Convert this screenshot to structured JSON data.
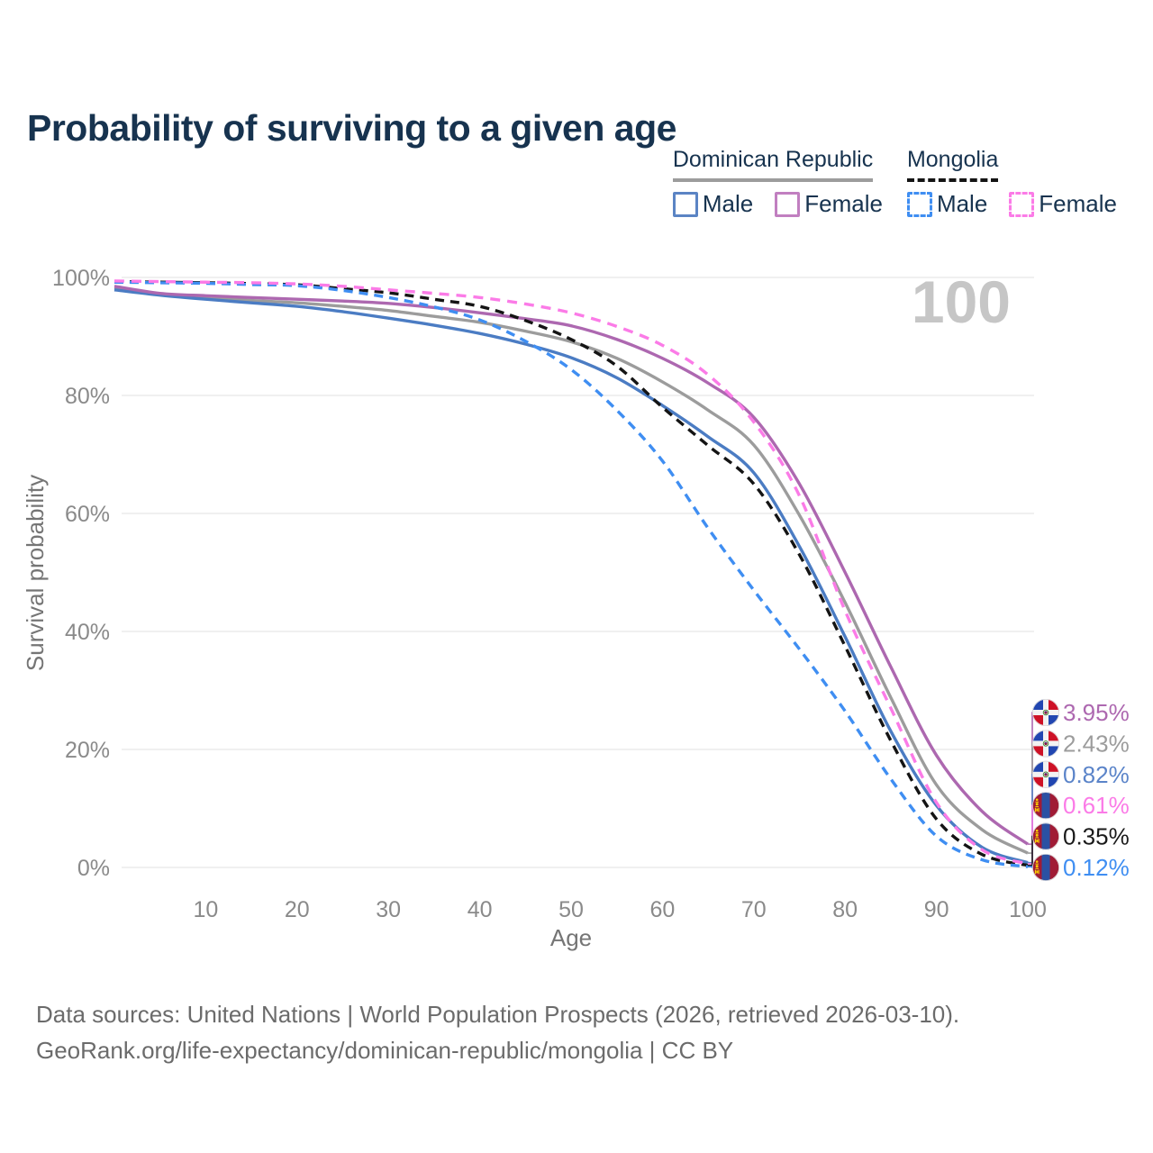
{
  "title": "Probability of surviving to a given age",
  "legend": {
    "groups": [
      {
        "name": "Dominican Republic",
        "items": [
          {
            "label": "Male"
          },
          {
            "label": "Female"
          }
        ]
      },
      {
        "name": "Mongolia",
        "items": [
          {
            "label": "Male"
          },
          {
            "label": "Female"
          }
        ]
      }
    ]
  },
  "chart_data": {
    "type": "line",
    "title": "Probability of surviving to a given age",
    "xlabel": "Age",
    "ylabel": "Survival probability",
    "xlim": [
      0,
      100
    ],
    "ylim": [
      0,
      100
    ],
    "grid": "horizontal",
    "legend_position": "top-right",
    "watermark": "100",
    "x_ticks": [
      10,
      20,
      30,
      40,
      50,
      60,
      70,
      80,
      90,
      100
    ],
    "y_ticks": [
      {
        "label": "0%",
        "value": 0
      },
      {
        "label": "20%",
        "value": 20
      },
      {
        "label": "40%",
        "value": 40
      },
      {
        "label": "60%",
        "value": 60
      },
      {
        "label": "80%",
        "value": 80
      },
      {
        "label": "100%",
        "value": 100
      }
    ],
    "x": [
      0,
      5,
      10,
      15,
      20,
      25,
      30,
      35,
      40,
      45,
      50,
      55,
      60,
      65,
      70,
      75,
      80,
      85,
      90,
      95,
      100
    ],
    "series": [
      {
        "name": "Dominican Republic Total",
        "id": "dr-total",
        "color": "#9c9c9c",
        "dash": "",
        "values": [
          98.2,
          97.2,
          96.6,
          96.1,
          95.7,
          95.1,
          94.4,
          93.4,
          92.4,
          90.9,
          89.1,
          86.3,
          82.3,
          77.5,
          71.6,
          59.7,
          44.9,
          28.8,
          14.0,
          6.4,
          2.43
        ]
      },
      {
        "name": "Dominican Republic Male",
        "id": "dr-male",
        "color": "#4b7cc3",
        "dash": "",
        "values": [
          97.9,
          97.0,
          96.3,
          95.7,
          95.1,
          94.2,
          93.1,
          91.9,
          90.5,
          88.7,
          86.4,
          83.0,
          78.3,
          73.0,
          66.9,
          54.4,
          39.1,
          23.1,
          10.5,
          3.4,
          0.82
        ]
      },
      {
        "name": "Dominican Republic Female",
        "id": "dr-female",
        "color": "#ad68b0",
        "dash": "",
        "values": [
          98.5,
          97.3,
          96.9,
          96.6,
          96.3,
          96.0,
          95.6,
          94.9,
          94.0,
          93.0,
          91.8,
          89.5,
          86.3,
          82.1,
          76.3,
          65.0,
          50.0,
          34.0,
          19.0,
          9.5,
          3.95
        ]
      },
      {
        "name": "Mongolia Total",
        "id": "mn-total",
        "color": "#141414",
        "dash": "10 7",
        "values": [
          99.3,
          99.2,
          99.1,
          98.95,
          98.75,
          98.1,
          97.4,
          96.3,
          95.1,
          92.7,
          89.5,
          85.0,
          78.0,
          71.5,
          65.0,
          53.0,
          37.5,
          21.5,
          8.2,
          2.2,
          0.35
        ]
      },
      {
        "name": "Mongolia Male",
        "id": "mn-male",
        "color": "#3f8ef2",
        "dash": "10 7",
        "values": [
          99.2,
          99.1,
          99.0,
          98.8,
          98.6,
          97.8,
          96.6,
          95.0,
          92.8,
          89.2,
          84.4,
          77.5,
          68.9,
          57.5,
          47.0,
          37.0,
          26.5,
          15.0,
          5.3,
          1.3,
          0.12
        ]
      },
      {
        "name": "Mongolia Female",
        "id": "mn-female",
        "color": "#fb7be7",
        "dash": "11 8",
        "values": [
          99.4,
          99.3,
          99.2,
          99.1,
          98.9,
          98.5,
          97.9,
          97.3,
          96.6,
          95.5,
          94.0,
          91.7,
          88.5,
          83.5,
          75.5,
          63.0,
          43.5,
          27.0,
          11.0,
          3.0,
          0.61
        ]
      }
    ],
    "end_labels": [
      {
        "flag": "do",
        "country": "Dominican Republic",
        "series": "dr-female",
        "value": "3.95%",
        "value_num": 3.95,
        "color": "#ad68b0"
      },
      {
        "flag": "do",
        "country": "Dominican Republic",
        "series": "dr-total",
        "value": "2.43%",
        "value_num": 2.43,
        "color": "#9c9c9c"
      },
      {
        "flag": "do",
        "country": "Dominican Republic",
        "series": "dr-male",
        "value": "0.82%",
        "value_num": 0.82,
        "color": "#5b84c9"
      },
      {
        "flag": "mn",
        "country": "Mongolia",
        "series": "mn-female",
        "value": "0.61%",
        "value_num": 0.61,
        "color": "#fb7be7"
      },
      {
        "flag": "mn",
        "country": "Mongolia",
        "series": "mn-total",
        "value": "0.35%",
        "value_num": 0.35,
        "color": "#1a1a1a"
      },
      {
        "flag": "mn",
        "country": "Mongolia",
        "series": "mn-male",
        "value": "0.12%",
        "value_num": 0.12,
        "color": "#3f8ef2"
      }
    ]
  },
  "footer": {
    "line1": "Data sources: United Nations | World Population Prospects (2026, retrieved 2026-03-10).",
    "line2": "GeoRank.org/life-expectancy/dominican-republic/mongolia | CC BY"
  },
  "colors": {
    "title_text": "#17334f",
    "axis_text": "#8a8a8a",
    "axis_label_text": "#757575",
    "grid": "#ebebeb",
    "watermark": "#c6c6c6",
    "footer_text": "#6b6b6b"
  }
}
